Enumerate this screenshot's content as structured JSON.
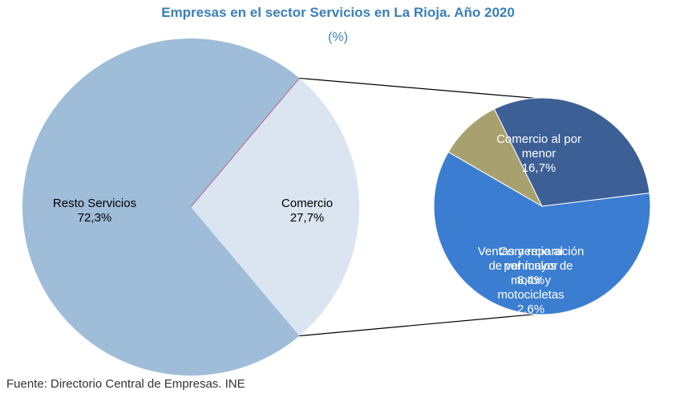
{
  "title": "Empresas en el sector Servicios en La Rioja. Año 2020",
  "subtitle": "(%)",
  "source": "Fuente: Directorio Central de Empresas. INE",
  "chart_data": {
    "type": "pie",
    "title": "Empresas en el sector Servicios en La Rioja. Año 2020",
    "subtitle": "(%)",
    "main_pie": {
      "slices": [
        {
          "name": "Resto Servicios",
          "value": 72.3,
          "label": "72,3%",
          "color": "#9fbcd8"
        },
        {
          "name": "Comercio",
          "value": 27.7,
          "label": "27,7%",
          "color": "#dbe5f1"
        }
      ]
    },
    "breakdown_of": "Comercio",
    "breakdown_pie": {
      "slices": [
        {
          "name": "Comercio al por menor",
          "label_lines": [
            "Comercio al por",
            "menor"
          ],
          "value": 16.7,
          "label": "16,7%",
          "color": "#3b7dd1"
        },
        {
          "name": "Ventas y reparación de vehículos de motor y motocicletas",
          "label_lines": [
            "Ventas y reparación",
            "de vehículos de",
            "motor y",
            "motocicletas"
          ],
          "value": 2.6,
          "label": "2,6%",
          "color": "#a8a06f"
        },
        {
          "name": "Comercio al por mayor",
          "label_lines": [
            "Comercio al",
            "por mayor"
          ],
          "value": 8.4,
          "label": "8,4%",
          "color": "#3c5f96"
        }
      ]
    }
  }
}
